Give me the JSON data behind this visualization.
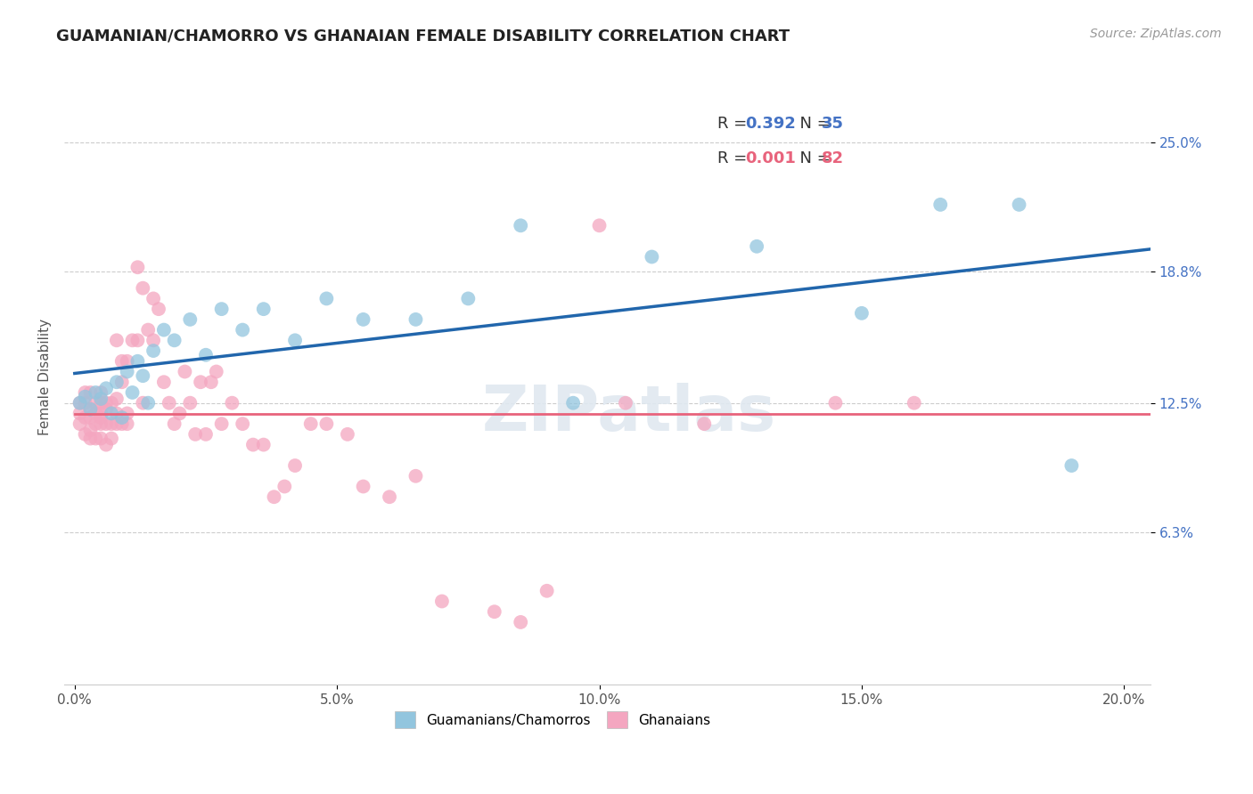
{
  "title": "GUAMANIAN/CHAMORRO VS GHANAIAN FEMALE DISABILITY CORRELATION CHART",
  "source": "Source: ZipAtlas.com",
  "ylabel": "Female Disability",
  "xlim": [
    -0.002,
    0.205
  ],
  "ylim": [
    -0.01,
    0.285
  ],
  "xtick_labels": [
    "0.0%",
    "",
    "5.0%",
    "",
    "10.0%",
    "",
    "15.0%",
    "",
    "20.0%"
  ],
  "xtick_values": [
    0.0,
    0.025,
    0.05,
    0.075,
    0.1,
    0.125,
    0.15,
    0.175,
    0.2
  ],
  "ytick_right_labels": [
    "6.3%",
    "12.5%",
    "18.8%",
    "25.0%"
  ],
  "ytick_right_values": [
    0.063,
    0.125,
    0.188,
    0.25
  ],
  "ytick_grid_values": [
    0.063,
    0.125,
    0.188,
    0.25
  ],
  "legend_r1": "R = 0.392",
  "legend_n1": "N = 35",
  "legend_r2": "R = 0.001",
  "legend_n2": "N = 82",
  "color_blue": "#92C5DE",
  "color_pink": "#F4A6C0",
  "line_blue": "#2166AC",
  "line_pink": "#E8637C",
  "watermark": "ZIPatlas",
  "guamanian_x": [
    0.001,
    0.002,
    0.003,
    0.004,
    0.005,
    0.006,
    0.007,
    0.008,
    0.009,
    0.01,
    0.011,
    0.012,
    0.013,
    0.014,
    0.015,
    0.017,
    0.019,
    0.022,
    0.025,
    0.028,
    0.032,
    0.036,
    0.042,
    0.048,
    0.055,
    0.065,
    0.075,
    0.085,
    0.095,
    0.11,
    0.13,
    0.15,
    0.165,
    0.18,
    0.19
  ],
  "guamanian_y": [
    0.125,
    0.128,
    0.122,
    0.13,
    0.127,
    0.132,
    0.12,
    0.135,
    0.118,
    0.14,
    0.13,
    0.145,
    0.138,
    0.125,
    0.15,
    0.16,
    0.155,
    0.165,
    0.148,
    0.17,
    0.16,
    0.17,
    0.155,
    0.175,
    0.165,
    0.165,
    0.175,
    0.21,
    0.125,
    0.195,
    0.2,
    0.168,
    0.22,
    0.22,
    0.095
  ],
  "ghanaian_x": [
    0.001,
    0.001,
    0.001,
    0.002,
    0.002,
    0.002,
    0.002,
    0.003,
    0.003,
    0.003,
    0.003,
    0.003,
    0.004,
    0.004,
    0.004,
    0.004,
    0.005,
    0.005,
    0.005,
    0.005,
    0.005,
    0.005,
    0.006,
    0.006,
    0.006,
    0.006,
    0.007,
    0.007,
    0.007,
    0.008,
    0.008,
    0.008,
    0.008,
    0.009,
    0.009,
    0.009,
    0.01,
    0.01,
    0.01,
    0.011,
    0.012,
    0.012,
    0.013,
    0.013,
    0.014,
    0.015,
    0.015,
    0.016,
    0.017,
    0.018,
    0.019,
    0.02,
    0.021,
    0.022,
    0.023,
    0.024,
    0.025,
    0.026,
    0.027,
    0.028,
    0.03,
    0.032,
    0.034,
    0.036,
    0.038,
    0.04,
    0.042,
    0.045,
    0.048,
    0.052,
    0.055,
    0.06,
    0.065,
    0.07,
    0.08,
    0.085,
    0.09,
    0.1,
    0.105,
    0.12,
    0.145,
    0.16
  ],
  "ghanaian_y": [
    0.125,
    0.12,
    0.115,
    0.13,
    0.118,
    0.125,
    0.11,
    0.108,
    0.122,
    0.13,
    0.118,
    0.112,
    0.125,
    0.115,
    0.108,
    0.12,
    0.115,
    0.13,
    0.12,
    0.108,
    0.118,
    0.125,
    0.115,
    0.122,
    0.105,
    0.125,
    0.115,
    0.108,
    0.125,
    0.115,
    0.155,
    0.12,
    0.127,
    0.135,
    0.115,
    0.145,
    0.12,
    0.115,
    0.145,
    0.155,
    0.19,
    0.155,
    0.18,
    0.125,
    0.16,
    0.175,
    0.155,
    0.17,
    0.135,
    0.125,
    0.115,
    0.12,
    0.14,
    0.125,
    0.11,
    0.135,
    0.11,
    0.135,
    0.14,
    0.115,
    0.125,
    0.115,
    0.105,
    0.105,
    0.08,
    0.085,
    0.095,
    0.115,
    0.115,
    0.11,
    0.085,
    0.08,
    0.09,
    0.03,
    0.025,
    0.02,
    0.035,
    0.21,
    0.125,
    0.115,
    0.125,
    0.125
  ]
}
